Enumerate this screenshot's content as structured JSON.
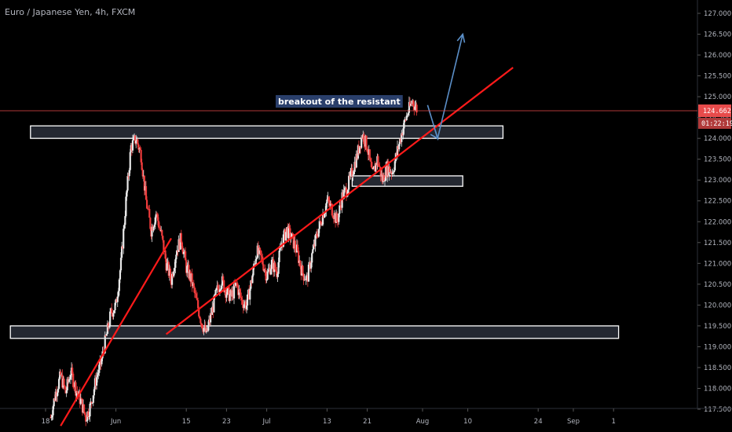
{
  "header": {
    "title": "Euro / Japanese Yen, 4h, FXCM"
  },
  "colors": {
    "background": "#000000",
    "up_candle": "#e8e8e8",
    "down_candle": "#ef3b3b",
    "trendline": "#ff1a1a",
    "arrow": "#5b8fc8",
    "box_fill": "#2a2f3a",
    "box_stroke": "#ffffff",
    "price_tag": "#e84b4b"
  },
  "chart_data": {
    "type": "candlestick",
    "symbol": "Euro / Japanese Yen",
    "timeframe": "4h",
    "source": "FXCM",
    "ylim": [
      117.5,
      127.0
    ],
    "y_ticks": [
      "127.000",
      "126.500",
      "126.000",
      "125.500",
      "125.000",
      "124.500",
      "124.000",
      "123.500",
      "123.000",
      "122.500",
      "122.000",
      "121.500",
      "121.000",
      "120.500",
      "120.000",
      "119.500",
      "119.000",
      "118.500",
      "118.000",
      "117.500"
    ],
    "x_ticks": [
      {
        "label": "18",
        "day": 0
      },
      {
        "label": "Jun",
        "day": 14
      },
      {
        "label": "15",
        "day": 28
      },
      {
        "label": "23",
        "day": 36
      },
      {
        "label": "Jul",
        "day": 44
      },
      {
        "label": "13",
        "day": 56
      },
      {
        "label": "21",
        "day": 64
      },
      {
        "label": "Aug",
        "day": 75
      },
      {
        "label": "10",
        "day": 84
      },
      {
        "label": "24",
        "day": 98
      },
      {
        "label": "Sep",
        "day": 105
      },
      {
        "label": "1",
        "day": 113
      }
    ],
    "current_price": "124.662",
    "countdown": "01:22:19",
    "annotation": "breakout of the resistant",
    "path": [
      [
        1,
        117.3
      ],
      [
        2,
        117.9
      ],
      [
        3,
        118.3
      ],
      [
        4,
        117.9
      ],
      [
        5,
        118.4
      ],
      [
        6,
        118.0
      ],
      [
        7,
        117.7
      ],
      [
        8,
        117.3
      ],
      [
        9,
        117.6
      ],
      [
        10,
        118.2
      ],
      [
        11,
        118.6
      ],
      [
        12,
        119.2
      ],
      [
        13,
        119.8
      ],
      [
        14,
        120.0
      ],
      [
        15,
        121.0
      ],
      [
        16,
        122.5
      ],
      [
        17,
        123.8
      ],
      [
        18,
        124.0
      ],
      [
        19,
        123.6
      ],
      [
        20,
        122.5
      ],
      [
        21,
        121.8
      ],
      [
        22,
        122.2
      ],
      [
        23,
        121.7
      ],
      [
        24,
        121.0
      ],
      [
        25,
        120.6
      ],
      [
        26,
        121.3
      ],
      [
        27,
        121.6
      ],
      [
        28,
        120.9
      ],
      [
        29,
        120.6
      ],
      [
        30,
        120.1
      ],
      [
        31,
        119.6
      ],
      [
        32,
        119.3
      ],
      [
        33,
        119.8
      ],
      [
        34,
        120.3
      ],
      [
        35,
        120.6
      ],
      [
        36,
        120.3
      ],
      [
        37,
        120.2
      ],
      [
        38,
        120.5
      ],
      [
        39,
        120.1
      ],
      [
        40,
        120.0
      ],
      [
        41,
        120.6
      ],
      [
        42,
        121.3
      ],
      [
        43,
        121.1
      ],
      [
        44,
        120.7
      ],
      [
        45,
        121.0
      ],
      [
        46,
        120.8
      ],
      [
        47,
        121.5
      ],
      [
        48,
        121.8
      ],
      [
        49,
        121.6
      ],
      [
        50,
        121.3
      ],
      [
        51,
        120.8
      ],
      [
        52,
        120.6
      ],
      [
        53,
        121.2
      ],
      [
        54,
        121.7
      ],
      [
        55,
        122.1
      ],
      [
        56,
        122.5
      ],
      [
        57,
        122.3
      ],
      [
        58,
        122.0
      ],
      [
        59,
        122.6
      ],
      [
        60,
        122.8
      ],
      [
        61,
        123.2
      ],
      [
        62,
        123.6
      ],
      [
        63,
        124.1
      ],
      [
        64,
        123.8
      ],
      [
        65,
        123.1
      ],
      [
        66,
        123.5
      ],
      [
        67,
        123.0
      ],
      [
        68,
        123.3
      ],
      [
        69,
        123.2
      ],
      [
        70,
        123.7
      ],
      [
        71,
        124.2
      ],
      [
        72,
        124.6
      ],
      [
        73,
        124.9
      ],
      [
        74,
        124.66
      ]
    ],
    "zones": [
      {
        "name": "resistance-zone-upper",
        "day_start": -3,
        "day_end": 91,
        "low": 124.0,
        "high": 124.3
      },
      {
        "name": "support-zone-middle",
        "day_start": 61,
        "day_end": 83,
        "low": 122.85,
        "high": 123.1
      },
      {
        "name": "support-zone-lower",
        "day_start": -7,
        "day_end": 114,
        "low": 119.2,
        "high": 119.5
      }
    ],
    "trendlines": [
      {
        "name": "trendline-early",
        "start": [
          3,
          117.1
        ],
        "end": [
          25,
          121.6
        ]
      },
      {
        "name": "trendline-main",
        "start": [
          24,
          119.3
        ],
        "end": [
          93,
          125.7
        ]
      }
    ],
    "arrow_path": [
      [
        76,
        124.8
      ],
      [
        78,
        124.0
      ],
      [
        80,
        125.0
      ],
      [
        83,
        126.5
      ]
    ]
  }
}
